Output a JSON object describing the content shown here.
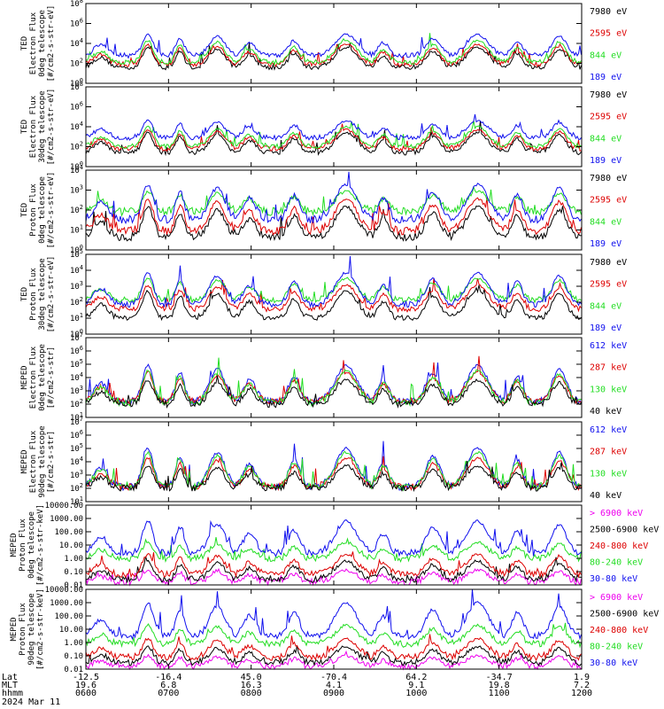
{
  "colors": {
    "blue": "#1010ee",
    "red": "#dd0000",
    "green": "#22dd22",
    "black": "#000000",
    "magenta": "#ee00ee"
  },
  "chart_data": [
    {
      "type": "line",
      "title": "",
      "ylabel_lines": [
        "TED",
        "Electron Flux",
        "0deg telescope",
        "[#/cm2-s-str-eV]"
      ],
      "ytick_labels": [
        "10^0",
        "10^2",
        "10^4",
        "10^6",
        "10^8"
      ],
      "yscale": "log",
      "ylim_exp": [
        0,
        8
      ],
      "series": [
        {
          "name": "7980 eV",
          "color": "black",
          "base": 1.6,
          "peak": 3.6
        },
        {
          "name": "2595 eV",
          "color": "red",
          "base": 1.9,
          "peak": 3.9
        },
        {
          "name": "844 eV",
          "color": "green",
          "base": 2.1,
          "peak": 4.3
        },
        {
          "name": "189 eV",
          "color": "blue",
          "base": 2.8,
          "peak": 4.9
        }
      ]
    },
    {
      "type": "line",
      "title": "",
      "ylabel_lines": [
        "TED",
        "Electron Flux",
        "30deg telescope",
        "[#/cm2-s-str-eV]"
      ],
      "ytick_labels": [
        "10^0",
        "10^2",
        "10^4",
        "10^6",
        "10^8"
      ],
      "yscale": "log",
      "ylim_exp": [
        0,
        8
      ],
      "series": [
        {
          "name": "7980 eV",
          "color": "black",
          "base": 1.4,
          "peak": 3.4
        },
        {
          "name": "2595 eV",
          "color": "red",
          "base": 1.8,
          "peak": 3.7
        },
        {
          "name": "844 eV",
          "color": "green",
          "base": 2.0,
          "peak": 4.0
        },
        {
          "name": "189 eV",
          "color": "blue",
          "base": 2.9,
          "peak": 4.6
        }
      ]
    },
    {
      "type": "line",
      "title": "",
      "ylabel_lines": [
        "TED",
        "Proton Flux",
        "0deg telescope",
        "[#/cm2-s-str-eV]"
      ],
      "ytick_labels": [
        "10^0",
        "10^1",
        "10^2",
        "10^3",
        "10^4"
      ],
      "yscale": "log",
      "ylim_exp": [
        0,
        5
      ],
      "series": [
        {
          "name": "7980 eV",
          "color": "black",
          "base": 0.8,
          "peak": 2.7
        },
        {
          "name": "2595 eV",
          "color": "red",
          "base": 1.2,
          "peak": 3.2
        },
        {
          "name": "844 eV",
          "color": "green",
          "base": 2.4,
          "peak": 3.7
        },
        {
          "name": "189 eV",
          "color": "blue",
          "base": 1.9,
          "peak": 4.1
        }
      ]
    },
    {
      "type": "line",
      "title": "",
      "ylabel_lines": [
        "TED",
        "Proton Flux",
        "30deg telescope",
        "[#/cm2-s-str-eV]"
      ],
      "ytick_labels": [
        "10^0",
        "10^1",
        "10^2",
        "10^3",
        "10^4",
        "10^5"
      ],
      "yscale": "log",
      "ylim_exp": [
        -1,
        6
      ],
      "series": [
        {
          "name": "7980 eV",
          "color": "black",
          "base": 0.4,
          "peak": 2.8
        },
        {
          "name": "2595 eV",
          "color": "red",
          "base": 1.2,
          "peak": 3.3
        },
        {
          "name": "844 eV",
          "color": "green",
          "base": 2.0,
          "peak": 3.9
        },
        {
          "name": "189 eV",
          "color": "blue",
          "base": 1.6,
          "peak": 4.4
        }
      ]
    },
    {
      "type": "line",
      "title": "",
      "ylabel_lines": [
        "MEPED",
        "Electron Flux",
        "0deg telescope",
        "[#/cm2-s-str]"
      ],
      "ytick_labels": [
        "10^1",
        "10^2",
        "10^3",
        "10^4",
        "10^5",
        "10^6",
        "10^7"
      ],
      "yscale": "log",
      "ylim_exp": [
        1,
        7
      ],
      "series": [
        {
          "name": "612 keV",
          "color": "blue",
          "base": 2.2,
          "peak": 4.9
        },
        {
          "name": "287 keV",
          "color": "red",
          "base": 2.2,
          "peak": 4.4
        },
        {
          "name": "130 keV",
          "color": "green",
          "base": 2.1,
          "peak": 4.5
        },
        {
          "name": "40 keV",
          "color": "black",
          "base": 2.0,
          "peak": 3.8
        }
      ]
    },
    {
      "type": "line",
      "title": "",
      "ylabel_lines": [
        "MEPED",
        "Electron Flux",
        "90deg telescope",
        "[#/cm2-s-str]"
      ],
      "ytick_labels": [
        "10^1",
        "10^2",
        "10^3",
        "10^4",
        "10^5",
        "10^6",
        "10^7"
      ],
      "yscale": "log",
      "ylim_exp": [
        1,
        7
      ],
      "series": [
        {
          "name": "612 keV",
          "color": "blue",
          "base": 2.1,
          "peak": 5.0
        },
        {
          "name": "287 keV",
          "color": "red",
          "base": 2.1,
          "peak": 4.3
        },
        {
          "name": "130 keV",
          "color": "green",
          "base": 2.1,
          "peak": 4.7
        },
        {
          "name": "40 keV",
          "color": "black",
          "base": 2.0,
          "peak": 3.7
        }
      ]
    },
    {
      "type": "line",
      "title": "",
      "ylabel_lines": [
        "MEPED",
        "Proton Flux",
        "0deg telescope",
        "[#/cm2-s-str-keV]"
      ],
      "ytick_labels": [
        "0.01",
        "0.10",
        "1.00",
        "10.00",
        "100.00",
        "1000.00",
        "10000.00"
      ],
      "yscale": "log",
      "ylim_exp": [
        -2,
        4
      ],
      "series": [
        {
          "name": "> 6900 keV",
          "color": "magenta",
          "base": -1.8,
          "peak": -0.9
        },
        {
          "name": "2500-6900 keV",
          "color": "black",
          "base": -1.6,
          "peak": -0.2
        },
        {
          "name": "240-800 keV",
          "color": "red",
          "base": -1.2,
          "peak": 0.3
        },
        {
          "name": "80-240 keV",
          "color": "green",
          "base": 0.0,
          "peak": 1.2
        },
        {
          "name": "30-80 keV",
          "color": "blue",
          "base": 0.4,
          "peak": 2.8
        }
      ]
    },
    {
      "type": "line",
      "title": "",
      "ylabel_lines": [
        "MEPED",
        "Proton Flux",
        "90deg telescope",
        "[#/cm2-s-str-keV]"
      ],
      "ytick_labels": [
        "0.01",
        "0.10",
        "1.00",
        "10.00",
        "100.00",
        "1000.00",
        "10000.00"
      ],
      "yscale": "log",
      "ylim_exp": [
        -2,
        4
      ],
      "series": [
        {
          "name": "> 6900 keV",
          "color": "magenta",
          "base": -1.8,
          "peak": -1.0
        },
        {
          "name": "2500-6900 keV",
          "color": "black",
          "base": -1.5,
          "peak": -0.3
        },
        {
          "name": "240-800 keV",
          "color": "red",
          "base": -1.1,
          "peak": 0.3
        },
        {
          "name": "80-240 keV",
          "color": "green",
          "base": -0.1,
          "peak": 1.3
        },
        {
          "name": "30-80 keV",
          "color": "blue",
          "base": 0.5,
          "peak": 3.0
        }
      ]
    }
  ],
  "x_axis": {
    "row_labels": [
      "Lat",
      "MLT",
      "hhmm"
    ],
    "ticks": [
      {
        "lat": "-12.5",
        "mlt": "19.6",
        "time": "0600"
      },
      {
        "lat": "-16.4",
        "mlt": "6.8",
        "time": "0700"
      },
      {
        "lat": "45.0",
        "mlt": "16.3",
        "time": "0800"
      },
      {
        "lat": "-70.4",
        "mlt": "4.1",
        "time": "0900"
      },
      {
        "lat": "64.2",
        "mlt": "9.1",
        "time": "1000"
      },
      {
        "lat": "-34.7",
        "mlt": "19.8",
        "time": "1100"
      },
      {
        "lat": "1.9",
        "mlt": "7.2",
        "time": "1200"
      }
    ],
    "date": "2024 Mar 11"
  }
}
